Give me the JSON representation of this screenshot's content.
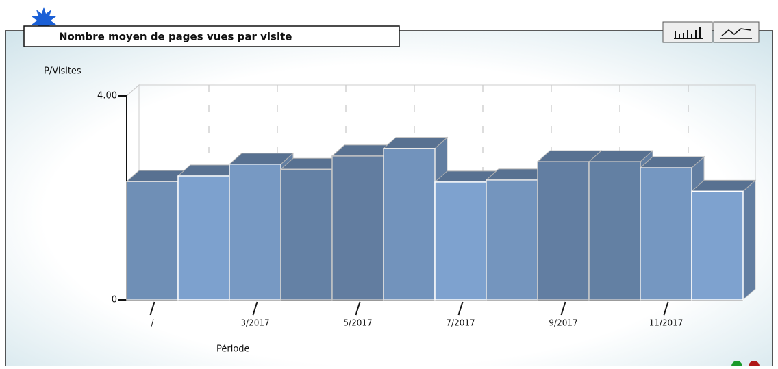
{
  "title": "Nombre moyen de pages vues par visite",
  "chart_data": {
    "type": "bar3d",
    "y_label": "P/Visites",
    "x_label": "Période",
    "categories": [
      "/",
      null,
      "3/2017",
      null,
      "5/2017",
      null,
      "7/2017",
      null,
      "9/2017",
      null,
      "11/2017",
      null
    ],
    "values": [
      2.32,
      2.43,
      2.66,
      2.56,
      2.82,
      2.97,
      2.31,
      2.35,
      2.71,
      2.71,
      2.59,
      2.13
    ],
    "color": "#7ea2cf",
    "ylim": [
      0,
      4
    ],
    "yticks": [
      0,
      {
        "value": 4,
        "label": "4.00"
      }
    ],
    "grid": true
  }
}
